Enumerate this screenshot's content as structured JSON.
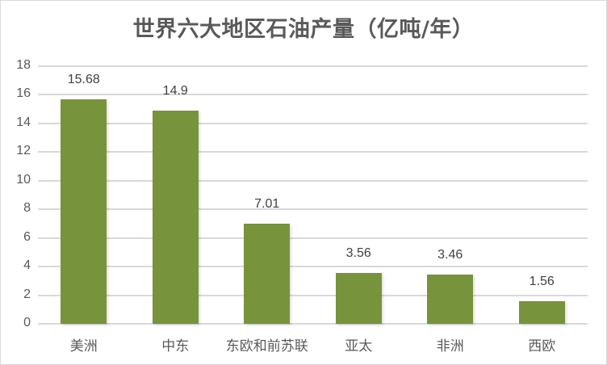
{
  "chart_data": {
    "type": "bar",
    "title": "世界六大地区石油产量（亿吨/年）",
    "categories": [
      "美洲",
      "中东",
      "东欧和前苏联",
      "亚太",
      "非洲",
      "西欧"
    ],
    "values": [
      15.68,
      14.9,
      7.01,
      3.56,
      3.46,
      1.56
    ],
    "data_labels": [
      "15.68",
      "14.9",
      "7.01",
      "3.56",
      "3.46",
      "1.56"
    ],
    "xlabel": "",
    "ylabel": "",
    "ylim": [
      0,
      18
    ],
    "yticks": [
      "0",
      "2",
      "4",
      "6",
      "8",
      "10",
      "12",
      "14",
      "16",
      "18"
    ],
    "grid": true,
    "legend": "none",
    "bar_color": "#77933c"
  }
}
